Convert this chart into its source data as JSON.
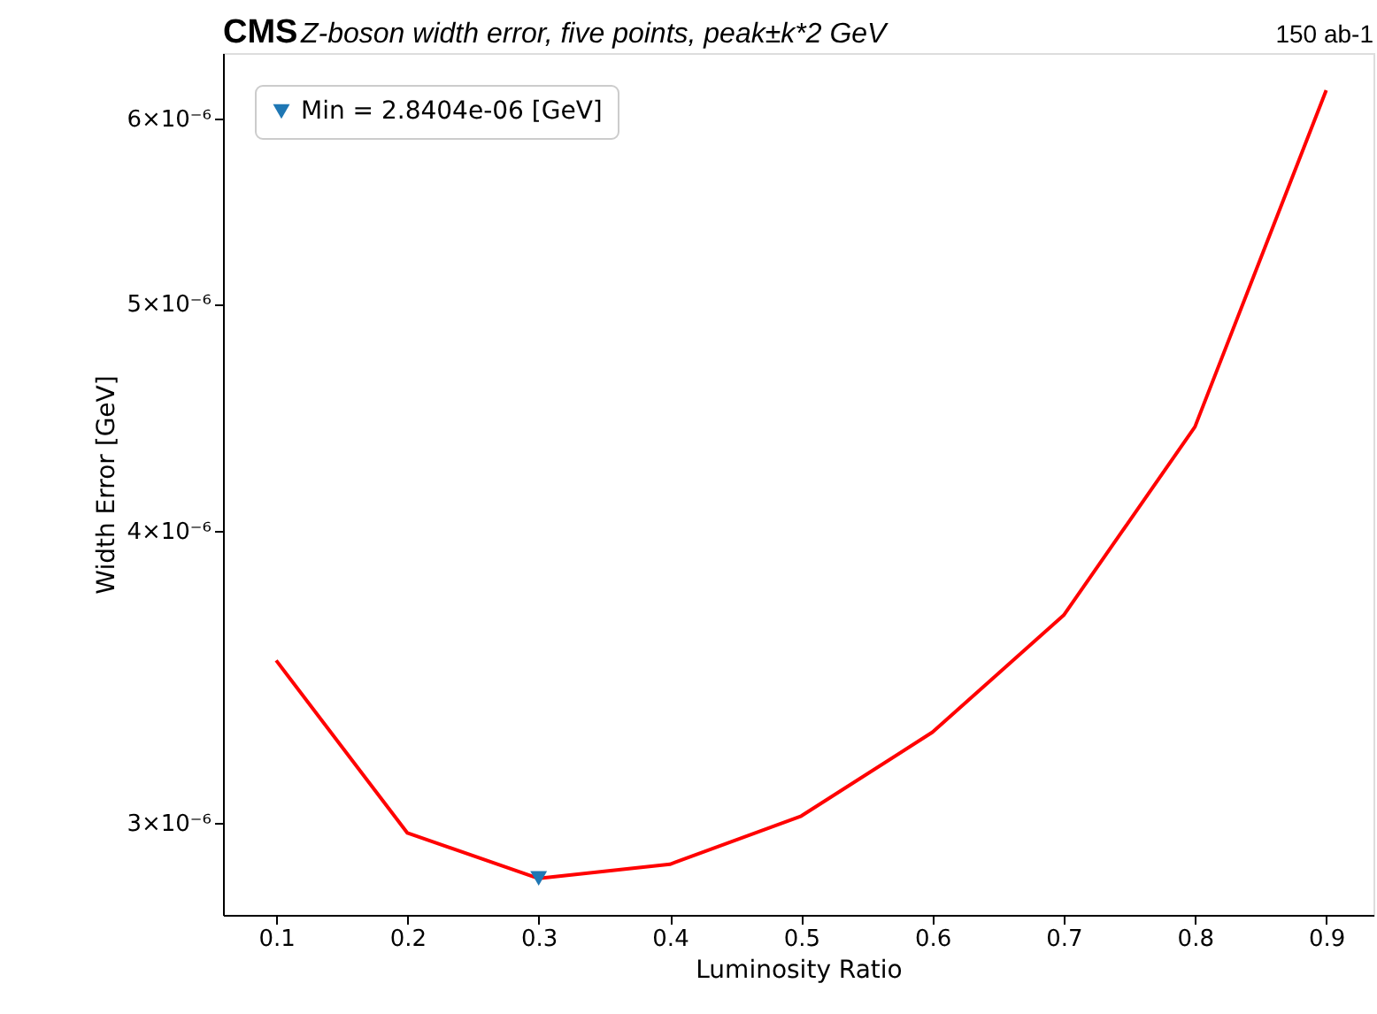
{
  "chart_data": {
    "type": "line",
    "title": "CMS",
    "subtitle": "Z-boson width error, five points, peak±k*2 GeV",
    "annotations": [
      "150 ab-1"
    ],
    "xlabel": "Luminosity Ratio",
    "ylabel": "Width Error [GeV]",
    "x": [
      0.1,
      0.2,
      0.3,
      0.4,
      0.5,
      0.6,
      0.7,
      0.8,
      0.9
    ],
    "series": [
      {
        "color": "#ff0000",
        "values": [
          3.52e-06,
          2.97e-06,
          2.84e-06,
          2.88e-06,
          3.02e-06,
          3.28e-06,
          3.68e-06,
          4.43e-06,
          6.17e-06
        ]
      },
      {
        "type": "scatter",
        "name": "Min = 2.8404e-06 [GeV]",
        "color": "#1f77b4",
        "marker": "triangle",
        "x": [
          0.3
        ],
        "values": [
          2.8404e-06
        ]
      }
    ],
    "log": "y",
    "xlim": [
      0.0595,
      0.936
    ],
    "ylim": [
      2.74e-06,
      6.4e-06
    ],
    "xticks": [
      0.1,
      0.2,
      0.3,
      0.4,
      0.5,
      0.6,
      0.7,
      0.8,
      0.9
    ],
    "yticks": [
      {
        "value": 3e-06,
        "label": "3×10⁻⁶"
      },
      {
        "value": 4e-06,
        "label": "4×10⁻⁶"
      },
      {
        "value": 5e-06,
        "label": "5×10⁻⁶"
      },
      {
        "value": 6e-06,
        "label": "6×10⁻⁶"
      }
    ],
    "grid": false,
    "legend": "top left"
  }
}
